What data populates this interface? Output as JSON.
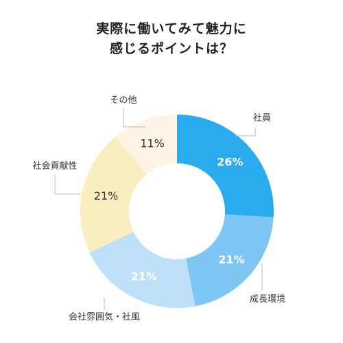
{
  "chart_data": {
    "type": "pie",
    "variant": "donut",
    "title_lines": [
      "実際に働いてみて魅力に",
      "感じるポイントは？"
    ],
    "slices": [
      {
        "label": "社員",
        "value": 26,
        "value_label": "26%",
        "color": "#29abee",
        "text_color": "#ffffff"
      },
      {
        "label": "成長環境",
        "value": 21,
        "value_label": "21%",
        "color": "#7ec6f3",
        "text_color": "#ffffff"
      },
      {
        "label": "会社雰囲気・社風",
        "value": 21,
        "value_label": "21%",
        "color": "#bfe0f9",
        "text_color": "#ffffff"
      },
      {
        "label": "社会貢献性",
        "value": 21,
        "value_label": "21%",
        "color": "#f8eec0",
        "text_color": "#333333"
      },
      {
        "label": "その他",
        "value": 11,
        "value_label": "11%",
        "color": "#fdf3e4",
        "text_color": "#333333"
      }
    ],
    "start_angle_deg": 0,
    "direction": "clockwise",
    "leader_line_color": "#bbbbbb",
    "legend": "none"
  }
}
